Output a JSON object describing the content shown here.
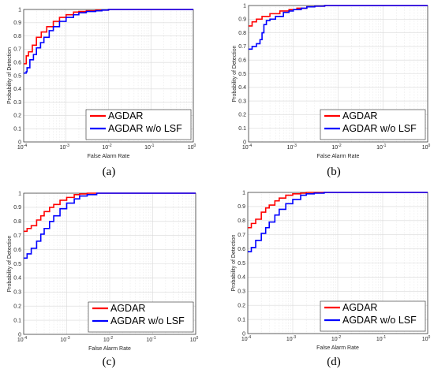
{
  "chart_data": [
    {
      "type": "line",
      "caption": "(a)",
      "xlabel": "False Alarm Rate",
      "ylabel": "Probability of Detection",
      "xscale": "log",
      "xlim": [
        0.0001,
        1
      ],
      "ylim": [
        0,
        1
      ],
      "x_tick_labels": [
        {
          "base": "10",
          "exp": "-4"
        },
        {
          "base": "10",
          "exp": "-3"
        },
        {
          "base": "10",
          "exp": "-2"
        },
        {
          "base": "10",
          "exp": "-1"
        },
        {
          "base": "10",
          "exp": "0"
        }
      ],
      "y_tick_labels": [
        "0",
        "0.1",
        "0.2",
        "0.3",
        "0.4",
        "0.5",
        "0.6",
        "0.7",
        "0.8",
        "0.9",
        "1"
      ],
      "grid": true,
      "legend_position": "bottom-right",
      "series": [
        {
          "name": "AGDAR",
          "color": "#ff0000",
          "x": [
            0.0001,
            0.000115,
            0.00013,
            0.00016,
            0.0002,
            0.00026,
            0.00035,
            0.0005,
            0.0007,
            0.001,
            0.0015,
            0.002,
            0.003,
            0.005,
            0.01,
            1
          ],
          "y": [
            0.59,
            0.65,
            0.68,
            0.73,
            0.79,
            0.83,
            0.87,
            0.91,
            0.94,
            0.96,
            0.98,
            0.985,
            0.99,
            0.995,
            1.0,
            1.0
          ]
        },
        {
          "name": "AGDAR w/o LSF",
          "color": "#0000ff",
          "x": [
            0.0001,
            0.000115,
            0.00012,
            0.00014,
            0.00017,
            0.0002,
            0.00025,
            0.0003,
            0.0004,
            0.0005,
            0.0007,
            0.001,
            0.0015,
            0.002,
            0.003,
            0.005,
            0.007,
            0.01,
            1
          ],
          "y": [
            0.52,
            0.53,
            0.56,
            0.62,
            0.66,
            0.71,
            0.75,
            0.79,
            0.84,
            0.87,
            0.91,
            0.94,
            0.96,
            0.975,
            0.985,
            0.99,
            0.995,
            1.0,
            1.0
          ]
        }
      ]
    },
    {
      "type": "line",
      "caption": "(b)",
      "xlabel": "False Alarm Rate",
      "ylabel": "Probability of Detection",
      "xscale": "log",
      "xlim": [
        0.0001,
        1
      ],
      "ylim": [
        0,
        1
      ],
      "x_tick_labels": [
        {
          "base": "10",
          "exp": "-4"
        },
        {
          "base": "10",
          "exp": "-3"
        },
        {
          "base": "10",
          "exp": "-2"
        },
        {
          "base": "10",
          "exp": "-1"
        },
        {
          "base": "10",
          "exp": "0"
        }
      ],
      "y_tick_labels": [
        "0",
        "0.1",
        "0.2",
        "0.3",
        "0.4",
        "0.5",
        "0.6",
        "0.7",
        "0.8",
        "0.9",
        "1"
      ],
      "grid": true,
      "legend_position": "bottom-right",
      "series": [
        {
          "name": "AGDAR",
          "color": "#ff0000",
          "x": [
            0.0001,
            0.00012,
            0.00015,
            0.0002,
            0.0003,
            0.0005,
            0.0008,
            0.0012,
            0.002,
            0.003,
            0.005,
            1
          ],
          "y": [
            0.85,
            0.88,
            0.9,
            0.92,
            0.94,
            0.96,
            0.97,
            0.98,
            0.99,
            0.995,
            1.0,
            1.0
          ]
        },
        {
          "name": "AGDAR w/o LSF",
          "color": "#0000ff",
          "x": [
            0.0001,
            0.00012,
            0.00015,
            0.00018,
            0.0002,
            0.00022,
            0.00025,
            0.0003,
            0.0004,
            0.0006,
            0.0008,
            0.001,
            0.0015,
            0.002,
            0.003,
            0.005,
            1
          ],
          "y": [
            0.68,
            0.7,
            0.72,
            0.75,
            0.8,
            0.86,
            0.89,
            0.9,
            0.92,
            0.95,
            0.96,
            0.97,
            0.98,
            0.99,
            0.995,
            1.0,
            1.0
          ]
        }
      ]
    },
    {
      "type": "line",
      "caption": "(c)",
      "xlabel": "False Alarm Rate",
      "ylabel": "Probability of Detection",
      "xscale": "log",
      "xlim": [
        0.0001,
        1
      ],
      "ylim": [
        0,
        1
      ],
      "x_tick_labels": [
        {
          "base": "10",
          "exp": "-4"
        },
        {
          "base": "10",
          "exp": "-3"
        },
        {
          "base": "10",
          "exp": "-2"
        },
        {
          "base": "10",
          "exp": "-1"
        },
        {
          "base": "10",
          "exp": "0"
        }
      ],
      "y_tick_labels": [
        "0",
        "0.1",
        "0.2",
        "0.3",
        "0.4",
        "0.5",
        "0.6",
        "0.7",
        "0.8",
        "0.9",
        "1"
      ],
      "grid": true,
      "legend_position": "bottom-right",
      "series": [
        {
          "name": "AGDAR",
          "color": "#ff0000",
          "x": [
            0.0001,
            0.00012,
            0.00015,
            0.0002,
            0.00025,
            0.0003,
            0.0004,
            0.0005,
            0.0007,
            0.001,
            0.0015,
            0.002,
            0.003,
            0.005,
            1
          ],
          "y": [
            0.73,
            0.75,
            0.77,
            0.81,
            0.84,
            0.87,
            0.9,
            0.92,
            0.95,
            0.97,
            0.99,
            0.995,
            1.0,
            1.0,
            1.0
          ]
        },
        {
          "name": "AGDAR w/o LSF",
          "color": "#0000ff",
          "x": [
            0.0001,
            0.00012,
            0.00015,
            0.0002,
            0.00025,
            0.0003,
            0.0004,
            0.0005,
            0.0007,
            0.001,
            0.0015,
            0.002,
            0.003,
            0.005,
            1
          ],
          "y": [
            0.54,
            0.57,
            0.61,
            0.66,
            0.71,
            0.75,
            0.8,
            0.84,
            0.89,
            0.93,
            0.96,
            0.98,
            0.99,
            1.0,
            1.0
          ]
        }
      ]
    },
    {
      "type": "line",
      "caption": "(d)",
      "xlabel": "False Alarm Rate",
      "ylabel": "Probability of Detection",
      "xscale": "log",
      "xlim": [
        0.0001,
        1
      ],
      "ylim": [
        0,
        1
      ],
      "x_tick_labels": [
        {
          "base": "10",
          "exp": "-4"
        },
        {
          "base": "10",
          "exp": "-3"
        },
        {
          "base": "10",
          "exp": "-2"
        },
        {
          "base": "10",
          "exp": "-1"
        },
        {
          "base": "10",
          "exp": "0"
        }
      ],
      "y_tick_labels": [
        "0",
        "0.1",
        "0.2",
        "0.3",
        "0.4",
        "0.5",
        "0.6",
        "0.7",
        "0.8",
        "0.9",
        "1"
      ],
      "grid": true,
      "legend_position": "bottom-right",
      "series": [
        {
          "name": "AGDAR",
          "color": "#ff0000",
          "x": [
            0.0001,
            0.00012,
            0.00015,
            0.0002,
            0.00025,
            0.0003,
            0.0004,
            0.0005,
            0.0007,
            0.001,
            0.0015,
            0.002,
            0.003,
            1
          ],
          "y": [
            0.75,
            0.78,
            0.81,
            0.86,
            0.89,
            0.91,
            0.94,
            0.96,
            0.98,
            0.99,
            0.995,
            1.0,
            1.0,
            1.0
          ]
        },
        {
          "name": "AGDAR w/o LSF",
          "color": "#0000ff",
          "x": [
            0.0001,
            0.00012,
            0.00015,
            0.0002,
            0.00025,
            0.0003,
            0.0004,
            0.0005,
            0.0007,
            0.001,
            0.0015,
            0.002,
            0.003,
            0.005,
            1
          ],
          "y": [
            0.58,
            0.61,
            0.66,
            0.71,
            0.75,
            0.79,
            0.84,
            0.88,
            0.92,
            0.95,
            0.98,
            0.99,
            0.995,
            1.0,
            1.0
          ]
        }
      ]
    }
  ]
}
